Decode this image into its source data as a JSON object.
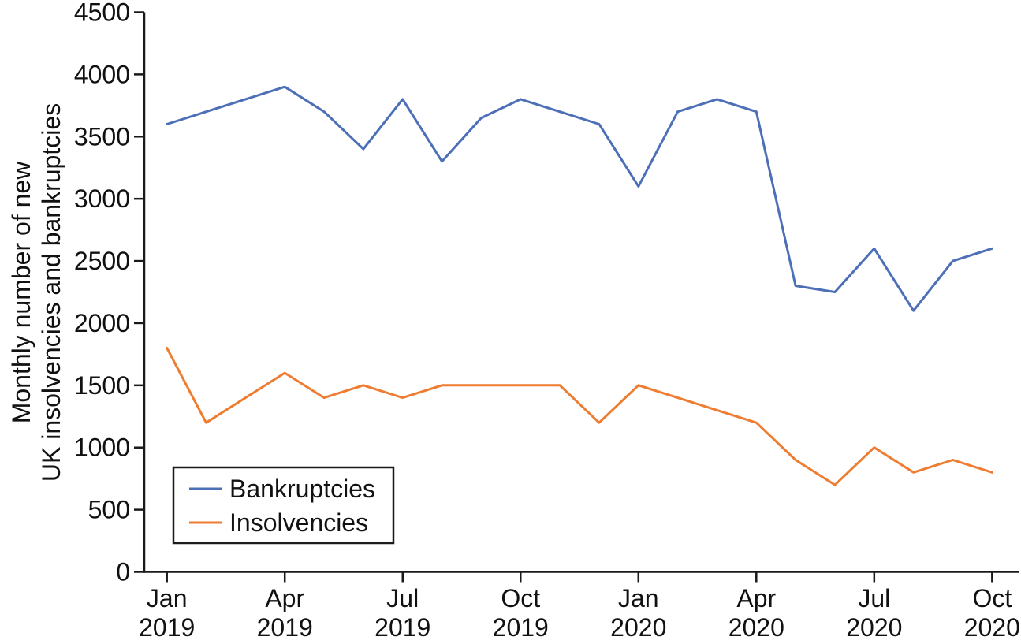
{
  "figure": {
    "background": "#ffffff",
    "axis_color": "#1a1a1a",
    "ylabel_line1": "Monthly number of new",
    "ylabel_line2": "UK insolvencies and bankruptcies"
  },
  "legend": {
    "position": "lower-left",
    "border_color": "#1a1a1a",
    "items": [
      {
        "label": "Bankruptcies",
        "color": "#4c6fb7"
      },
      {
        "label": "Insolvencies",
        "color": "#ee7d31"
      }
    ]
  },
  "chart_data": {
    "type": "line",
    "title": "",
    "xlabel": "",
    "ylabel": "Monthly number of new UK insolvencies and bankruptcies",
    "ylim": [
      0,
      4500
    ],
    "ytick_step": 500,
    "y_tick_labels": [
      "0",
      "500",
      "1000",
      "1500",
      "2000",
      "2500",
      "3000",
      "3500",
      "4000",
      "4500"
    ],
    "grid": false,
    "categories": [
      "Jan 2019",
      "Feb 2019",
      "Mar 2019",
      "Apr 2019",
      "May 2019",
      "Jun 2019",
      "Jul 2019",
      "Aug 2019",
      "Sep 2019",
      "Oct 2019",
      "Nov 2019",
      "Dec 2019",
      "Jan 2020",
      "Feb 2020",
      "Mar 2020",
      "Apr 2020",
      "May 2020",
      "Jun 2020",
      "Jul 2020",
      "Aug 2020",
      "Sep 2020",
      "Oct 2020"
    ],
    "x_ticks": [
      {
        "index": 0,
        "line1": "Jan",
        "line2": "2019"
      },
      {
        "index": 3,
        "line1": "Apr",
        "line2": "2019"
      },
      {
        "index": 6,
        "line1": "Jul",
        "line2": "2019"
      },
      {
        "index": 9,
        "line1": "Oct",
        "line2": "2019"
      },
      {
        "index": 12,
        "line1": "Jan",
        "line2": "2020"
      },
      {
        "index": 15,
        "line1": "Apr",
        "line2": "2020"
      },
      {
        "index": 18,
        "line1": "Jul",
        "line2": "2020"
      },
      {
        "index": 21,
        "line1": "Oct",
        "line2": "2020"
      }
    ],
    "series": [
      {
        "name": "Bankruptcies",
        "color": "#4c6fb7",
        "values": [
          3600,
          3700,
          3800,
          3900,
          3700,
          3400,
          3800,
          3300,
          3650,
          3800,
          3700,
          3600,
          3100,
          3700,
          3800,
          3700,
          2300,
          2250,
          2600,
          2100,
          2500,
          2600
        ]
      },
      {
        "name": "Insolvencies",
        "color": "#ee7d31",
        "values": [
          1800,
          1200,
          1400,
          1600,
          1400,
          1500,
          1400,
          1500,
          1500,
          1500,
          1500,
          1200,
          1500,
          1400,
          1300,
          1200,
          900,
          700,
          1000,
          800,
          900,
          800
        ]
      }
    ]
  }
}
